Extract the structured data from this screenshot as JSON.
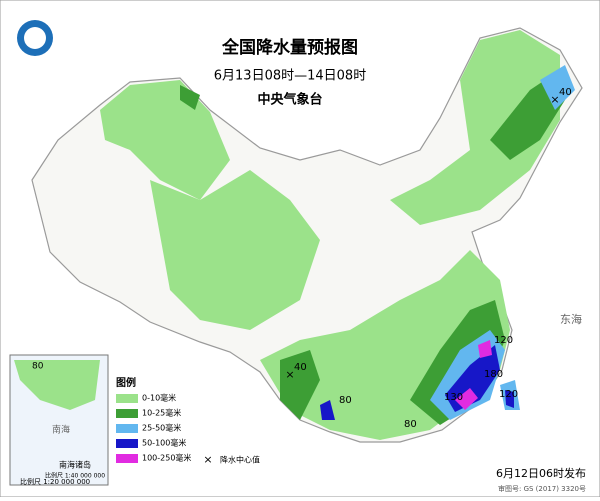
{
  "header": {
    "title": "全国降水量预报图",
    "period": "6月13日08时—14日08时",
    "issuer": "中央气象台"
  },
  "legend": {
    "title": "图例",
    "items": [
      "0-10毫米",
      "10-25毫米",
      "25-50毫米",
      "50-100毫米",
      "100-250毫米"
    ],
    "center_mark": "降水中心值"
  },
  "centers": [
    "40",
    "40",
    "80",
    "80",
    "120",
    "180",
    "120",
    "130"
  ],
  "inset": {
    "title": "南海诸岛",
    "scale": "比例尺 1:40 000 000",
    "value": "80"
  },
  "seas": [
    "东海",
    "南海"
  ],
  "footer": {
    "issued": "6月12日06时发布",
    "scale": "比例尺 1:20 000 000",
    "review": "审图号: GS (2017) 3320号"
  }
}
